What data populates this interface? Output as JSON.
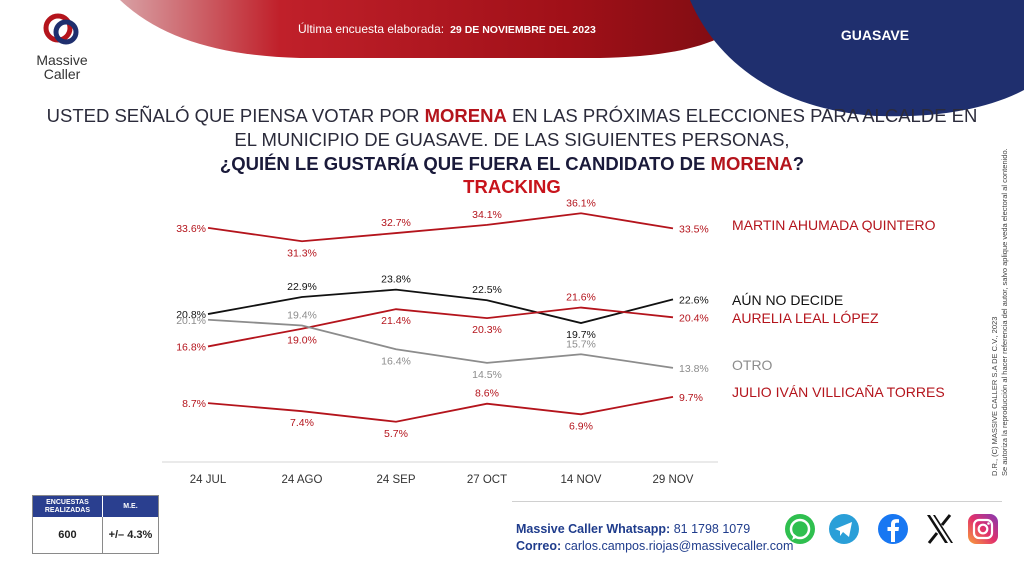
{
  "header": {
    "survey_label": "Última encuesta elaborada:",
    "survey_date": "29 DE NOVIEMBRE DEL 2023",
    "region": "GUASAVE"
  },
  "logo": {
    "line1": "Massive",
    "line2": "Caller"
  },
  "question": {
    "part1a": "USTED SEÑALÓ QUE PIENSA VOTAR POR ",
    "party": "MORENA",
    "part1b": " EN LAS PRÓXIMAS ELECCIONES PARA ALCALDE EN",
    "part1c": "EL MUNICIPIO DE GUASAVE.  DE LAS SIGUIENTES PERSONAS,",
    "part2a": "¿QUIÉN LE GUSTARÍA QUE FUERA EL CANDIDATO DE ",
    "part2b": "?",
    "tracking": "TRACKING"
  },
  "colors": {
    "red": "#b4141c",
    "navy": "#1f2f6e",
    "black": "#111111",
    "gray": "#8c8c8c"
  },
  "chart_data": {
    "type": "line",
    "categories": [
      "24 JUL",
      "24 AGO",
      "24 SEP",
      "27 OCT",
      "14 NOV",
      "29 NOV"
    ],
    "value_suffix": "%",
    "grid": false,
    "series": [
      {
        "name": "MARTIN AHUMADA QUINTERO",
        "color": "#b4141c",
        "values": [
          33.6,
          31.3,
          32.7,
          34.1,
          36.1,
          33.5
        ]
      },
      {
        "name": "AÚN NO DECIDE",
        "color": "#111111",
        "values": [
          20.8,
          22.9,
          23.8,
          22.5,
          19.7,
          22.6
        ]
      },
      {
        "name": "AURELIA LEAL LÓPEZ",
        "color": "#b4141c",
        "values": [
          16.8,
          19.0,
          21.4,
          20.3,
          21.6,
          20.4
        ]
      },
      {
        "name": "OTRO",
        "color": "#8c8c8c",
        "values": [
          20.1,
          19.4,
          16.4,
          14.5,
          15.7,
          13.8
        ]
      },
      {
        "name": "JULIO IVÁN VILLICAÑA TORRES",
        "color": "#b4141c",
        "values": [
          8.7,
          7.4,
          5.7,
          8.6,
          6.9,
          9.7
        ]
      }
    ]
  },
  "side_note": {
    "line1": "D.R., (C) MASSIVE CALLER S.A DE C.V., 2023",
    "line2": "Se autoriza la reproducción al hacer referencia del autor, salvo aplique veda electoral al contenido."
  },
  "me_table": {
    "col1_header": "ENCUESTAS REALIZADAS",
    "col2_header": "M.E.",
    "col1_value": "600",
    "col2_value": "+/– 4.3%"
  },
  "contact": {
    "whatsapp_label": "Massive Caller Whatsapp:",
    "whatsapp_value": "81 1798 1079",
    "email_label": "Correo:",
    "email_value": "carlos.campos.riojas@massivecaller.com"
  },
  "social_icons": [
    "whatsapp-icon",
    "telegram-icon",
    "facebook-icon",
    "x-icon",
    "instagram-icon"
  ]
}
